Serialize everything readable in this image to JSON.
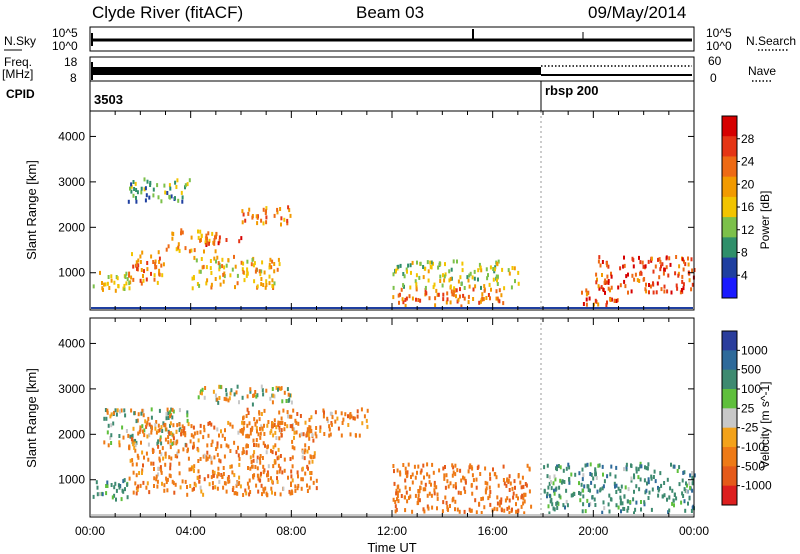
{
  "header": {
    "station": "Clyde River (fitACF)",
    "beam": "Beam 03",
    "date": "09/May/2014"
  },
  "strips": {
    "nsky_label": "N.Sky",
    "nsky_top": "10^5",
    "nsky_bottom": "10^0",
    "nsearch_label": "N.Search",
    "freq_label": "Freq.",
    "freq_unit": "[MHz]",
    "freq_top": "18",
    "freq_bottom": "8",
    "nave_top": "60",
    "nave_bottom": "0",
    "nave_label": "Nave",
    "cpid_label": "CPID",
    "cpid_first": "3503",
    "cpid_second": "rbsp 200"
  },
  "colors": {
    "power": [
      "#1a1aff",
      "#1f3fa0",
      "#2f8f6a",
      "#7cc04a",
      "#f2c400",
      "#f29a00",
      "#ee6a14",
      "#e53515",
      "#d60000"
    ],
    "velocity": [
      "#2a3d9c",
      "#2e6a9a",
      "#3e8a70",
      "#5fbf3c",
      "#c8c8c8",
      "#f3a21a",
      "#ee7a16",
      "#e55a1a",
      "#dd1f1f"
    ]
  },
  "chart_data": [
    {
      "type": "heatmap",
      "title": "Power",
      "ylabel": "Slant Range [km]",
      "xlabel": "Time UT",
      "x_ticks": [
        "00:00",
        "04:00",
        "08:00",
        "12:00",
        "16:00",
        "20:00",
        "00:00"
      ],
      "x_range_hours": [
        0,
        24
      ],
      "y_ticks": [
        1000,
        2000,
        3000,
        4000
      ],
      "ylim": [
        180,
        4560
      ],
      "colorbar": {
        "label": "Power [dB]",
        "ticks": [
          4,
          8,
          12,
          16,
          20,
          24,
          28
        ],
        "range": [
          0,
          32
        ]
      },
      "regions": [
        {
          "t": [
            0.1,
            1.6
          ],
          "r": [
            600,
            1100
          ],
          "value": 18
        },
        {
          "t": [
            1.5,
            3.0
          ],
          "r": [
            800,
            1500
          ],
          "value": 24
        },
        {
          "t": [
            3.0,
            5.0
          ],
          "r": [
            1500,
            2000
          ],
          "value": 22
        },
        {
          "t": [
            4.5,
            6.0
          ],
          "r": [
            1650,
            1850
          ],
          "value": 30
        },
        {
          "t": [
            6.0,
            8.0
          ],
          "r": [
            2100,
            2500
          ],
          "value": 25
        },
        {
          "t": [
            4.0,
            7.5
          ],
          "r": [
            700,
            1400
          ],
          "value": 20
        },
        {
          "t": [
            1.5,
            4.0
          ],
          "r": [
            2600,
            3100
          ],
          "value": 12
        },
        {
          "t": [
            12.0,
            16.5
          ],
          "r": [
            300,
            700
          ],
          "value": 26
        },
        {
          "t": [
            12.0,
            17.0
          ],
          "r": [
            700,
            1300
          ],
          "value": 16
        },
        {
          "t": [
            19.5,
            21.0
          ],
          "r": [
            300,
            700
          ],
          "value": 28
        },
        {
          "t": [
            20.0,
            24.0
          ],
          "r": [
            600,
            1400
          ],
          "value": 29
        }
      ]
    },
    {
      "type": "heatmap",
      "title": "Velocity",
      "ylabel": "Slant Range [km]",
      "xlabel": "Time UT",
      "x_ticks": [
        "00:00",
        "04:00",
        "08:00",
        "12:00",
        "16:00",
        "20:00",
        "00:00"
      ],
      "x_range_hours": [
        0,
        24
      ],
      "y_ticks": [
        1000,
        2000,
        3000,
        4000
      ],
      "ylim": [
        180,
        4560
      ],
      "colorbar": {
        "label": "Velocity [m s^-1]",
        "ticks": [
          "1000",
          "500",
          "100",
          "25",
          "-25",
          "-100",
          "-500",
          "-1000"
        ]
      },
      "regions": [
        {
          "t": [
            0.1,
            1.6
          ],
          "r": [
            600,
            1100
          ],
          "value": 300
        },
        {
          "t": [
            0.5,
            4.0
          ],
          "r": [
            1800,
            2600
          ],
          "value": 0
        },
        {
          "t": [
            4.0,
            8.0
          ],
          "r": [
            2700,
            3100
          ],
          "value": 0
        },
        {
          "t": [
            1.5,
            9.0
          ],
          "r": [
            700,
            2300
          ],
          "value": -300
        },
        {
          "t": [
            6.0,
            11.0
          ],
          "r": [
            2000,
            2600
          ],
          "value": -300
        },
        {
          "t": [
            12.0,
            17.5
          ],
          "r": [
            300,
            1400
          ],
          "value": -400
        },
        {
          "t": [
            18.0,
            24.0
          ],
          "r": [
            300,
            1400
          ],
          "value": 300
        }
      ]
    }
  ]
}
